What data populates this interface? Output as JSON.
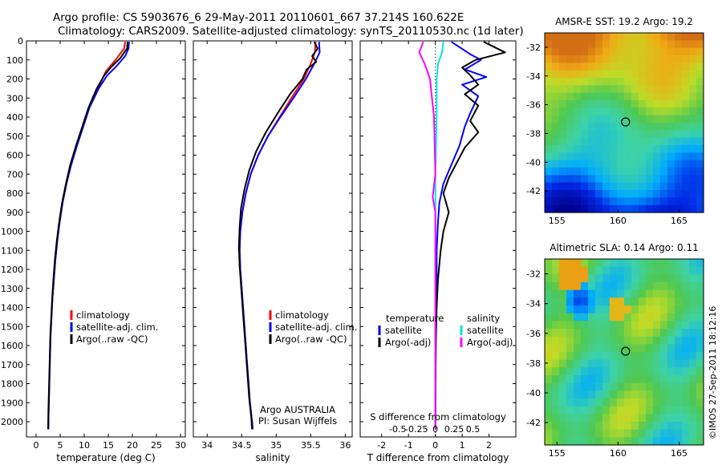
{
  "header": {
    "line1": "Argo profile: CS 5903676_6 29-May-2011 20110601_667 37.214S 160.622E",
    "line2": "Climatology: CARS2009. Satellite-adjusted climatology: synTS_20110530.nc (1d later)"
  },
  "footer_stamp": "©IMOS 27-Sep-2011 18:12:16",
  "colors": {
    "climatology": "#ff0000",
    "satellite": "#0000ff",
    "argo": "#000000",
    "satellite_s": "#00e5e5",
    "argo_s": "#ff00ff"
  },
  "chart_data": [
    {
      "id": "temp",
      "type": "line",
      "xlabel": "temperature (deg C)",
      "ylabel": "",
      "xlim": [
        -2,
        31
      ],
      "ylim": [
        2080,
        0
      ],
      "xticks": [
        0,
        5,
        10,
        15,
        20,
        25,
        30
      ],
      "yticks": [
        0,
        100,
        200,
        300,
        400,
        500,
        600,
        700,
        800,
        900,
        1000,
        1100,
        1200,
        1300,
        1400,
        1500,
        1600,
        1700,
        1800,
        1900,
        2000
      ],
      "legend": [
        "climatology",
        "satellite-adj. clim.",
        "Argo(..raw -QC)"
      ],
      "series": [
        {
          "name": "climatology",
          "color": "#ff0000",
          "points": [
            [
              18.5,
              5
            ],
            [
              18.3,
              40
            ],
            [
              16.5,
              100
            ],
            [
              14.5,
              160
            ],
            [
              12.8,
              250
            ],
            [
              11.0,
              350
            ],
            [
              9.7,
              450
            ],
            [
              8.4,
              550
            ],
            [
              7.2,
              650
            ],
            [
              6.3,
              750
            ],
            [
              5.5,
              850
            ],
            [
              4.9,
              950
            ],
            [
              4.4,
              1050
            ],
            [
              4.0,
              1150
            ],
            [
              3.7,
              1250
            ],
            [
              3.4,
              1350
            ],
            [
              3.2,
              1450
            ],
            [
              3.0,
              1550
            ],
            [
              2.9,
              1650
            ],
            [
              2.8,
              1750
            ],
            [
              2.7,
              1850
            ],
            [
              2.6,
              1950
            ],
            [
              2.55,
              2040
            ]
          ]
        },
        {
          "name": "satellite-adj. clim.",
          "color": "#0000ff",
          "points": [
            [
              19.3,
              5
            ],
            [
              19.2,
              40
            ],
            [
              18.5,
              80
            ],
            [
              16.8,
              130
            ],
            [
              14.8,
              180
            ],
            [
              13.0,
              250
            ],
            [
              11.1,
              350
            ],
            [
              9.8,
              450
            ],
            [
              8.5,
              550
            ],
            [
              7.3,
              650
            ],
            [
              6.3,
              750
            ],
            [
              5.5,
              850
            ],
            [
              4.9,
              950
            ],
            [
              4.4,
              1050
            ],
            [
              4.0,
              1150
            ],
            [
              3.7,
              1250
            ],
            [
              3.4,
              1350
            ],
            [
              3.2,
              1450
            ],
            [
              3.0,
              1550
            ],
            [
              2.9,
              1650
            ],
            [
              2.8,
              1750
            ],
            [
              2.7,
              1850
            ],
            [
              2.6,
              1950
            ],
            [
              2.55,
              2040
            ]
          ]
        },
        {
          "name": "Argo(..raw -QC)",
          "color": "#000000",
          "points": [
            [
              19.0,
              5
            ],
            [
              18.9,
              40
            ],
            [
              17.5,
              90
            ],
            [
              15.5,
              140
            ],
            [
              14.2,
              180
            ],
            [
              12.6,
              250
            ],
            [
              10.9,
              350
            ],
            [
              9.6,
              450
            ],
            [
              8.3,
              550
            ],
            [
              7.1,
              650
            ],
            [
              6.2,
              750
            ],
            [
              5.4,
              850
            ],
            [
              4.8,
              950
            ],
            [
              4.3,
              1050
            ],
            [
              3.9,
              1150
            ],
            [
              3.6,
              1250
            ],
            [
              3.35,
              1350
            ],
            [
              3.15,
              1450
            ],
            [
              2.95,
              1550
            ],
            [
              2.85,
              1650
            ],
            [
              2.75,
              1750
            ],
            [
              2.65,
              1850
            ],
            [
              2.55,
              1950
            ],
            [
              2.5,
              2040
            ]
          ]
        }
      ],
      "annotations": []
    },
    {
      "id": "sal",
      "type": "line",
      "xlabel": "salinity",
      "xlim": [
        33.8,
        36.1
      ],
      "ylim": [
        2080,
        0
      ],
      "xticks": [
        34,
        34.5,
        35,
        35.5,
        36
      ],
      "legend": [
        "climatology",
        "satellite-adj. clim.",
        "Argo(..raw -QC)"
      ],
      "series": [
        {
          "name": "climatology",
          "color": "#ff0000",
          "points": [
            [
              35.57,
              5
            ],
            [
              35.56,
              60
            ],
            [
              35.5,
              120
            ],
            [
              35.4,
              200
            ],
            [
              35.22,
              300
            ],
            [
              35.05,
              400
            ],
            [
              34.88,
              500
            ],
            [
              34.74,
              600
            ],
            [
              34.63,
              700
            ],
            [
              34.56,
              800
            ],
            [
              34.51,
              900
            ],
            [
              34.48,
              1000
            ],
            [
              34.47,
              1100
            ],
            [
              34.48,
              1200
            ],
            [
              34.5,
              1300
            ],
            [
              34.52,
              1400
            ],
            [
              34.54,
              1500
            ],
            [
              34.56,
              1600
            ],
            [
              34.58,
              1700
            ],
            [
              34.6,
              1800
            ],
            [
              34.62,
              1900
            ],
            [
              34.65,
              2000
            ],
            [
              34.66,
              2040
            ]
          ]
        },
        {
          "name": "satellite-adj. clim.",
          "color": "#0000ff",
          "points": [
            [
              35.62,
              5
            ],
            [
              35.63,
              60
            ],
            [
              35.55,
              120
            ],
            [
              35.43,
              200
            ],
            [
              35.25,
              300
            ],
            [
              35.06,
              400
            ],
            [
              34.88,
              500
            ],
            [
              34.74,
              600
            ],
            [
              34.63,
              700
            ],
            [
              34.56,
              800
            ],
            [
              34.51,
              900
            ],
            [
              34.48,
              1000
            ],
            [
              34.47,
              1100
            ],
            [
              34.48,
              1200
            ],
            [
              34.5,
              1300
            ],
            [
              34.52,
              1400
            ],
            [
              34.54,
              1500
            ],
            [
              34.56,
              1600
            ],
            [
              34.58,
              1700
            ],
            [
              34.6,
              1800
            ],
            [
              34.62,
              1900
            ],
            [
              34.65,
              2000
            ],
            [
              34.66,
              2040
            ]
          ]
        },
        {
          "name": "Argo(..raw -QC)",
          "color": "#000000",
          "points": [
            [
              35.55,
              5
            ],
            [
              35.6,
              40
            ],
            [
              35.52,
              80
            ],
            [
              35.58,
              110
            ],
            [
              35.44,
              150
            ],
            [
              35.38,
              200
            ],
            [
              35.2,
              280
            ],
            [
              35.02,
              380
            ],
            [
              34.85,
              480
            ],
            [
              34.71,
              580
            ],
            [
              34.61,
              680
            ],
            [
              34.54,
              780
            ],
            [
              34.49,
              880
            ],
            [
              34.47,
              980
            ],
            [
              34.46,
              1080
            ],
            [
              34.47,
              1180
            ],
            [
              34.49,
              1280
            ],
            [
              34.51,
              1380
            ],
            [
              34.53,
              1480
            ],
            [
              34.55,
              1580
            ],
            [
              34.57,
              1680
            ],
            [
              34.59,
              1780
            ],
            [
              34.61,
              1880
            ],
            [
              34.64,
              1980
            ],
            [
              34.65,
              2040
            ]
          ]
        }
      ],
      "annotations": [
        "Argo AUSTRALIA",
        "PI: Susan Wijffels"
      ]
    },
    {
      "id": "diff",
      "type": "line",
      "xlabel": "T difference from climatology",
      "xlabel_top": "S difference from climatology",
      "xlim": [
        -2.8,
        3.0
      ],
      "ylim": [
        2080,
        0
      ],
      "xticks": [
        -2,
        -1,
        0,
        1,
        2
      ],
      "top_ticks": [
        "-0.5",
        "-0.25",
        "0",
        "0.25",
        "0.5"
      ],
      "legend_left_title": "temperature",
      "legend_right_title": "salinity",
      "legend_left": [
        "satellite",
        "Argo(-adj)"
      ],
      "legend_right": [
        "satellite",
        "Argo(-adj)"
      ],
      "series": [
        {
          "name": "T satellite",
          "color": "#0000ff",
          "points": [
            [
              0.6,
              5
            ],
            [
              1.3,
              70
            ],
            [
              1.7,
              100
            ],
            [
              1.1,
              150
            ],
            [
              1.9,
              190
            ],
            [
              1.0,
              230
            ],
            [
              1.6,
              290
            ],
            [
              1.3,
              380
            ],
            [
              1.1,
              450
            ],
            [
              0.9,
              550
            ],
            [
              0.6,
              650
            ],
            [
              0.3,
              750
            ],
            [
              0.15,
              850
            ],
            [
              0.1,
              950
            ],
            [
              0.05,
              1100
            ],
            [
              0.05,
              1300
            ],
            [
              0.02,
              1500
            ],
            [
              0.01,
              1700
            ],
            [
              0.0,
              1900
            ],
            [
              0.0,
              2040
            ]
          ]
        },
        {
          "name": "T Argo(-adj)",
          "color": "#000000",
          "points": [
            [
              1.8,
              5
            ],
            [
              2.6,
              60
            ],
            [
              1.5,
              100
            ],
            [
              1.0,
              140
            ],
            [
              1.3,
              180
            ],
            [
              1.6,
              230
            ],
            [
              1.1,
              280
            ],
            [
              1.6,
              340
            ],
            [
              1.3,
              420
            ],
            [
              1.6,
              480
            ],
            [
              1.1,
              560
            ],
            [
              0.8,
              640
            ],
            [
              0.5,
              720
            ],
            [
              0.3,
              800
            ],
            [
              0.5,
              900
            ],
            [
              0.3,
              1000
            ],
            [
              0.2,
              1100
            ],
            [
              0.1,
              1250
            ],
            [
              0.05,
              1400
            ],
            [
              0.02,
              1600
            ],
            [
              0.01,
              1800
            ],
            [
              0.0,
              2040
            ]
          ]
        },
        {
          "name": "S satellite",
          "color": "#00e5e5",
          "points": [
            [
              0.3,
              5
            ],
            [
              0.25,
              60
            ],
            [
              0.1,
              120
            ],
            [
              0.05,
              200
            ],
            [
              0.05,
              400
            ],
            [
              0.0,
              700
            ],
            [
              0.0,
              1000
            ],
            [
              0.0,
              2040
            ]
          ]
        },
        {
          "name": "S Argo(-adj)",
          "color": "#ff00ff",
          "points": [
            [
              -0.45,
              5
            ],
            [
              -0.6,
              60
            ],
            [
              -0.4,
              120
            ],
            [
              -0.2,
              200
            ],
            [
              -0.05,
              400
            ],
            [
              0.0,
              700
            ],
            [
              -0.1,
              820
            ],
            [
              0.0,
              900
            ],
            [
              0.0,
              1100
            ],
            [
              0.0,
              2040
            ]
          ]
        }
      ]
    }
  ],
  "maps": [
    {
      "id": "sst",
      "title": "AMSR-E SST: 19.2 Argo: 19.2",
      "yticks": [
        "-32",
        "-34",
        "-36",
        "-38",
        "-40",
        "-42"
      ],
      "xticks": [
        "155",
        "160",
        "165"
      ],
      "profile_lon": 160.62,
      "profile_lat": -37.2
    },
    {
      "id": "sla",
      "title": "Altimetric SLA: 0.14 Argo: 0.11",
      "yticks": [
        "-32",
        "-34",
        "-36",
        "-38",
        "-40",
        "-42"
      ],
      "xticks": [
        "155",
        "160",
        "165"
      ],
      "profile_lon": 160.62,
      "profile_lat": -37.2
    }
  ]
}
